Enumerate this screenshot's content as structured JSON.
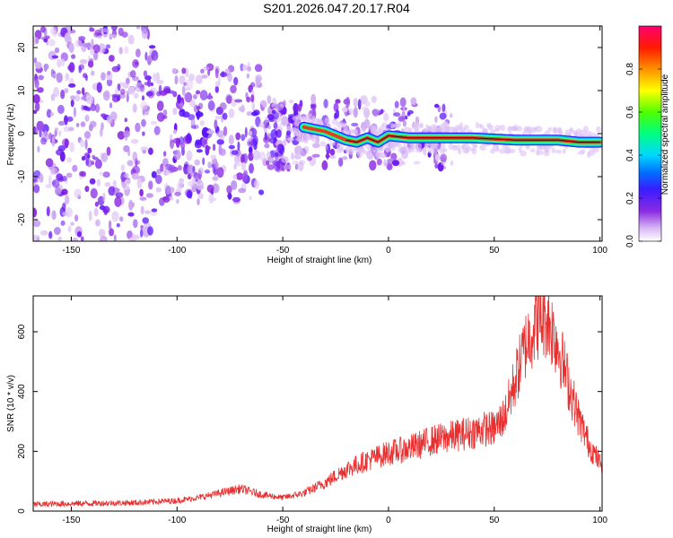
{
  "title": "S201.2026.047.20.17.R04",
  "chart_data": [
    {
      "type": "heatmap",
      "xlabel": "Height of straight line (km)",
      "ylabel": "Frequency (Hz)",
      "xlim": [
        -168,
        101
      ],
      "ylim": [
        -25,
        25
      ],
      "x_ticks": [
        -150,
        -100,
        -50,
        0,
        50,
        100
      ],
      "x_tick_labels": [
        "-150",
        "-100",
        "-50",
        "0",
        "50",
        "100"
      ],
      "y_ticks": [
        -20,
        -10,
        0,
        10,
        20
      ],
      "y_tick_labels": [
        "-20",
        "-10",
        "0",
        "10",
        "20"
      ],
      "colorbar": {
        "label": "Normalized spectral amplitude",
        "range": [
          0,
          1
        ],
        "ticks": [
          0.0,
          0.2,
          0.4,
          0.6,
          0.8
        ],
        "tick_labels": [
          "0.0",
          "0.2",
          "0.4",
          "0.6",
          "0.8"
        ],
        "colormap": "rainbow (white-purple-blue-cyan-green-yellow-red-magenta)"
      },
      "ridge": {
        "description": "Narrow high-amplitude frequency line, diffuse low-amplitude speckle at negative heights",
        "x": [
          -40,
          -30,
          -20,
          -15,
          -10,
          -5,
          0,
          10,
          30,
          40,
          60,
          80,
          90,
          100
        ],
        "frequency": [
          1.5,
          0.5,
          -1.5,
          -2.0,
          -1.0,
          -2.0,
          -0.5,
          -1.0,
          -1.0,
          -1.0,
          -1.5,
          -1.5,
          -2.0,
          -2.0
        ]
      }
    },
    {
      "type": "line",
      "xlabel": "Height of straight line (km)",
      "ylabel": "SNR (10 * v/v)",
      "xlim": [
        -168,
        101
      ],
      "ylim": [
        0,
        720
      ],
      "x_ticks": [
        -150,
        -100,
        -50,
        0,
        50,
        100
      ],
      "x_tick_labels": [
        "-150",
        "-100",
        "-50",
        "0",
        "50",
        "100"
      ],
      "y_ticks": [
        0,
        200,
        400,
        600
      ],
      "y_tick_labels": [
        "0",
        "200",
        "400",
        "600"
      ],
      "series": [
        {
          "color": "#e83030",
          "x": [
            -168,
            -150,
            -120,
            -100,
            -90,
            -80,
            -70,
            -60,
            -50,
            -40,
            -30,
            -20,
            -10,
            0,
            10,
            20,
            30,
            40,
            45,
            50,
            55,
            60,
            65,
            70,
            75,
            80,
            85,
            90,
            95,
            100
          ],
          "y": [
            22,
            25,
            28,
            35,
            45,
            60,
            75,
            55,
            45,
            60,
            95,
            140,
            170,
            195,
            210,
            235,
            250,
            265,
            275,
            275,
            320,
            440,
            560,
            640,
            650,
            560,
            430,
            310,
            220,
            160
          ]
        }
      ]
    }
  ]
}
